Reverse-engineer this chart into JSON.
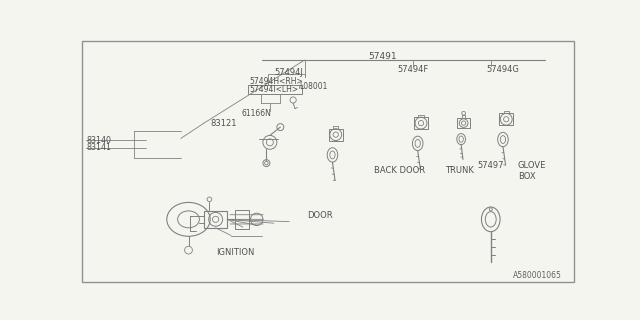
{
  "bg_color": "#f5f5f0",
  "line_color": "#808080",
  "text_color": "#505050",
  "dark_color": "#404040",
  "border_color": "#909090",
  "label_57491": "57491",
  "label_57494J": "57494J",
  "label_57494F": "57494F",
  "label_57494G": "57494G",
  "label_57494H": "57494H<RH>",
  "label_57494I": "57494I<LH>",
  "label_L08001": "L08001",
  "label_61166N": "61166N",
  "label_83121": "83121",
  "label_83140": "83140",
  "label_83141": "83141",
  "label_57497": "57497",
  "label_IGNITION": "IGNITION",
  "label_DOOR": "DOOR",
  "label_BACK_DOOR": "BACK DOOR",
  "label_TRUNK": "TRUNK",
  "label_GLOVE_BOX": "GLOVE\nBOX",
  "label_A580001065": "A580001065",
  "font_size": 5.5,
  "line_width": 0.6
}
